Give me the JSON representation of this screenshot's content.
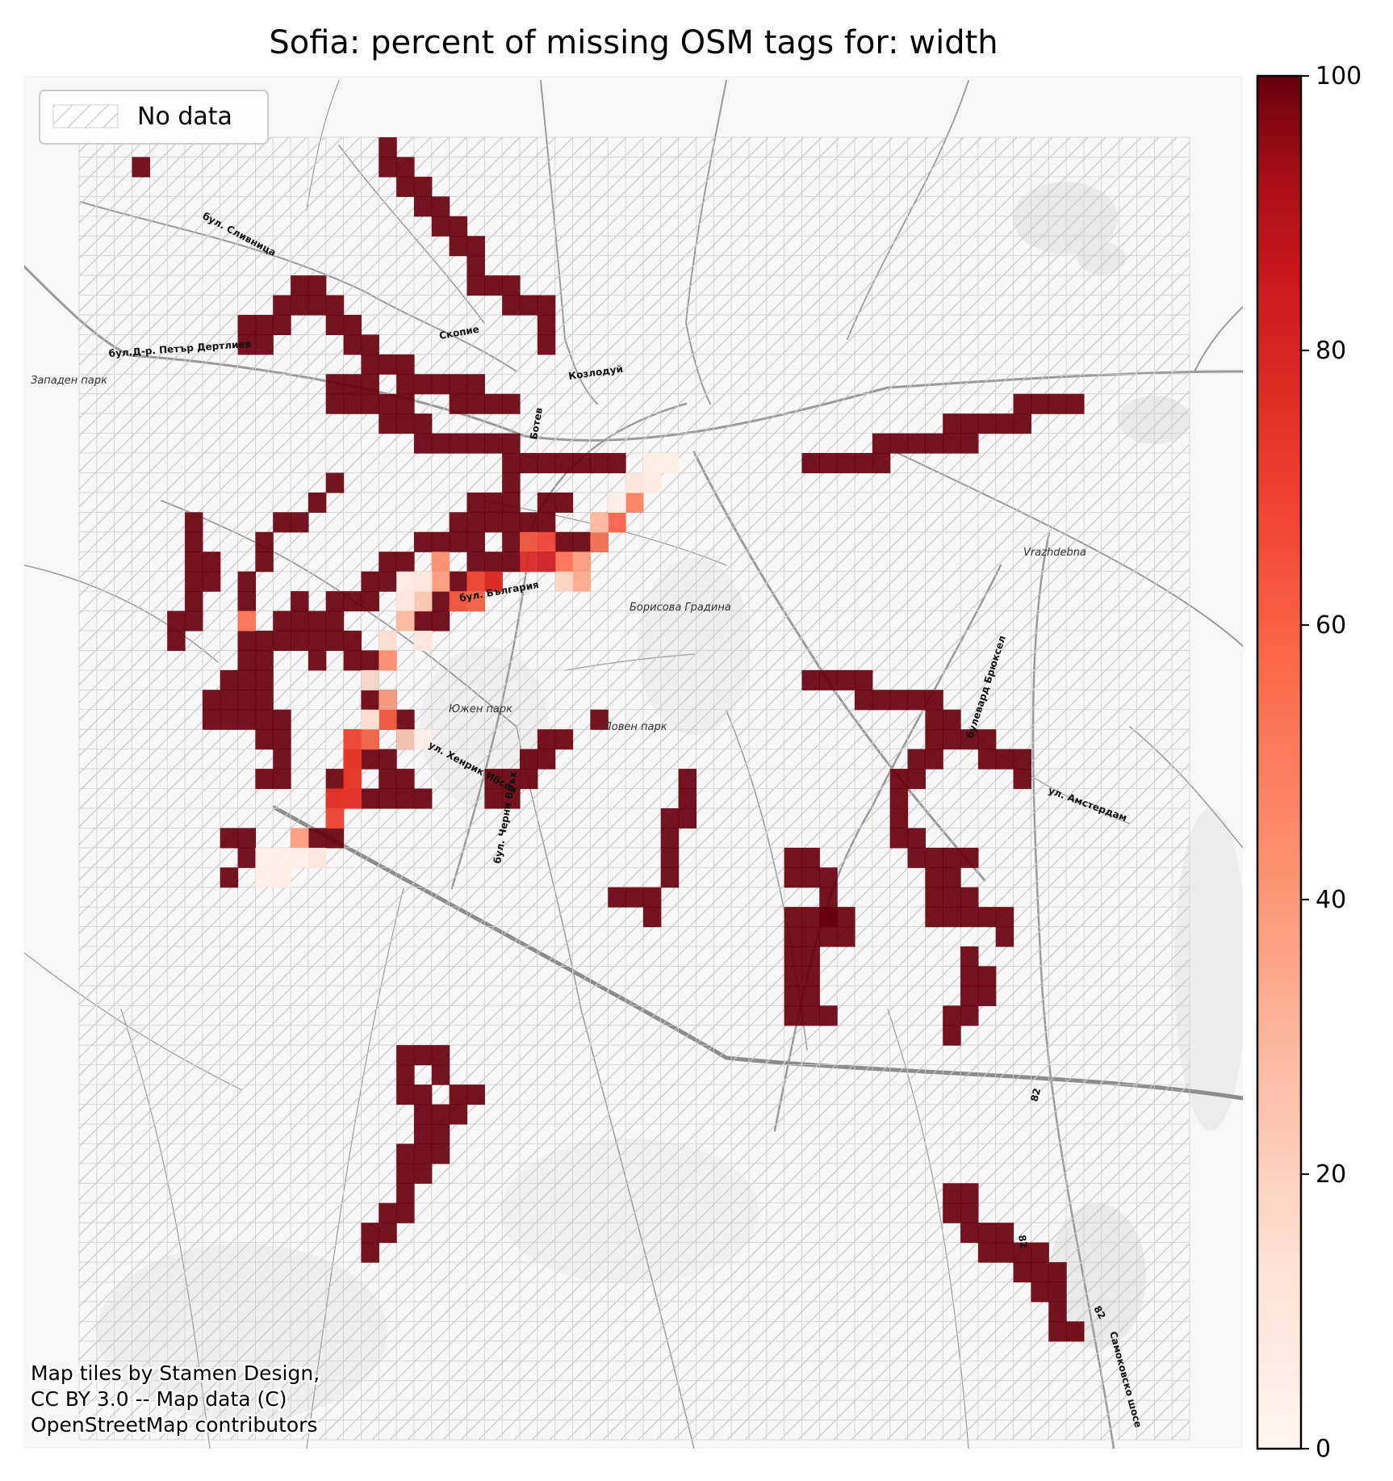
{
  "title": "Sofia: percent of missing OSM tags for: width",
  "legend": {
    "no_data_label": "No data"
  },
  "attribution": [
    "Map tiles by Stamen Design,",
    "CC BY 3.0 -- Map data (C)",
    "OpenStreetMap contributors"
  ],
  "colorbar": {
    "min": 0,
    "max": 100,
    "ticks": [
      "0",
      "20",
      "40",
      "60",
      "80",
      "100"
    ],
    "colormap": "Reds",
    "colors": [
      "#fff5f0",
      "#fcbba1",
      "#fc9272",
      "#fb6a4a",
      "#ef3b2c",
      "#cb181d",
      "#99000d",
      "#67000d"
    ]
  },
  "map_labels": {
    "zapaden": "Западен парк",
    "slivnitsa": "бул. Сливница",
    "petar": "бул.Д-р. Петър Дертлиев",
    "skopie": "Скопие",
    "kozloduy": "Козлодуй",
    "botev": "Ботев",
    "vrazhdebna": "Vrazhdebna",
    "borisova": "Борисова Градина",
    "bulgaria": "бул. България",
    "yuzhen": "Южен парк",
    "loven": "Ловен парк",
    "ibsen": "ул. Хенрик Ибсен",
    "cherni": "бул. Черни Връх",
    "brussels": "булевард Брюксел",
    "amsterdam": "ул. Амстердам",
    "samokov": "Самоковско шосе",
    "road82a": "82",
    "road82b": "82",
    "road82c": "82"
  },
  "chart_data": {
    "type": "heatmap",
    "title": "Sofia: percent of missing OSM tags for: width",
    "value_range": [
      0,
      100
    ],
    "colorbar_ticks": [
      0,
      20,
      40,
      60,
      80,
      100
    ],
    "grid": {
      "columns": 63,
      "rows": 66
    },
    "legend": [
      "No data"
    ],
    "legend_placement": "top-left",
    "note": "",
    "cells_100": [
      [
        3,
        1
      ],
      [
        17,
        0
      ],
      [
        17,
        1
      ],
      [
        18,
        1
      ],
      [
        18,
        2
      ],
      [
        19,
        2
      ],
      [
        19,
        3
      ],
      [
        20,
        3
      ],
      [
        20,
        4
      ],
      [
        21,
        4
      ],
      [
        21,
        5
      ],
      [
        22,
        5
      ],
      [
        22,
        6
      ],
      [
        22,
        7
      ],
      [
        23,
        7
      ],
      [
        24,
        7
      ],
      [
        24,
        8
      ],
      [
        25,
        8
      ],
      [
        26,
        8
      ],
      [
        26,
        9
      ],
      [
        26,
        10
      ],
      [
        12,
        7
      ],
      [
        13,
        7
      ],
      [
        11,
        8
      ],
      [
        12,
        8
      ],
      [
        13,
        8
      ],
      [
        14,
        8
      ],
      [
        9,
        9
      ],
      [
        10,
        9
      ],
      [
        11,
        9
      ],
      [
        14,
        9
      ],
      [
        15,
        9
      ],
      [
        9,
        10
      ],
      [
        10,
        10
      ],
      [
        15,
        10
      ],
      [
        16,
        10
      ],
      [
        16,
        11
      ],
      [
        17,
        11
      ],
      [
        18,
        11
      ],
      [
        18,
        12
      ],
      [
        19,
        12
      ],
      [
        20,
        12
      ],
      [
        21,
        12
      ],
      [
        22,
        12
      ],
      [
        21,
        13
      ],
      [
        22,
        13
      ],
      [
        23,
        13
      ],
      [
        24,
        13
      ],
      [
        14,
        12
      ],
      [
        15,
        12
      ],
      [
        16,
        12
      ],
      [
        14,
        13
      ],
      [
        15,
        13
      ],
      [
        16,
        13
      ],
      [
        17,
        13
      ],
      [
        18,
        13
      ],
      [
        17,
        14
      ],
      [
        18,
        14
      ],
      [
        19,
        14
      ],
      [
        19,
        15
      ],
      [
        20,
        15
      ],
      [
        21,
        15
      ],
      [
        22,
        15
      ],
      [
        23,
        15
      ],
      [
        24,
        15
      ],
      [
        24,
        16
      ],
      [
        25,
        16
      ],
      [
        26,
        16
      ],
      [
        27,
        16
      ],
      [
        28,
        16
      ],
      [
        29,
        16
      ],
      [
        30,
        16
      ],
      [
        24,
        17
      ],
      [
        24,
        18
      ],
      [
        23,
        18
      ],
      [
        22,
        18
      ],
      [
        24,
        19
      ],
      [
        23,
        19
      ],
      [
        21,
        19
      ],
      [
        22,
        19
      ],
      [
        20,
        20
      ],
      [
        21,
        20
      ],
      [
        22,
        20
      ],
      [
        19,
        20
      ],
      [
        18,
        21
      ],
      [
        22,
        21
      ],
      [
        23,
        21
      ],
      [
        24,
        21
      ],
      [
        17,
        21
      ],
      [
        16,
        22
      ],
      [
        17,
        22
      ],
      [
        23,
        22
      ],
      [
        22,
        22
      ],
      [
        21,
        22
      ],
      [
        15,
        23
      ],
      [
        16,
        23
      ],
      [
        14,
        23
      ],
      [
        21,
        23
      ],
      [
        22,
        23
      ],
      [
        20,
        23
      ],
      [
        19,
        24
      ],
      [
        20,
        24
      ],
      [
        14,
        24
      ],
      [
        13,
        24
      ],
      [
        26,
        18
      ],
      [
        27,
        18
      ],
      [
        25,
        19
      ],
      [
        26,
        19
      ],
      [
        24,
        20
      ],
      [
        25,
        20
      ],
      [
        27,
        20
      ],
      [
        28,
        20
      ],
      [
        29,
        20
      ],
      [
        14,
        17
      ],
      [
        13,
        18
      ],
      [
        12,
        19
      ],
      [
        11,
        19
      ],
      [
        10,
        20
      ],
      [
        10,
        21
      ],
      [
        9,
        22
      ],
      [
        9,
        23
      ],
      [
        6,
        19
      ],
      [
        6,
        20
      ],
      [
        6,
        21
      ],
      [
        7,
        21
      ],
      [
        6,
        22
      ],
      [
        7,
        22
      ],
      [
        6,
        23
      ],
      [
        5,
        24
      ],
      [
        6,
        24
      ],
      [
        5,
        25
      ],
      [
        12,
        23
      ],
      [
        12,
        24
      ],
      [
        11,
        24
      ],
      [
        11,
        25
      ],
      [
        10,
        25
      ],
      [
        12,
        25
      ],
      [
        13,
        25
      ],
      [
        14,
        25
      ],
      [
        13,
        26
      ],
      [
        15,
        25
      ],
      [
        15,
        26
      ],
      [
        16,
        26
      ],
      [
        16,
        27
      ],
      [
        9,
        25
      ],
      [
        10,
        26
      ],
      [
        9,
        26
      ],
      [
        10,
        27
      ],
      [
        9,
        27
      ],
      [
        8,
        27
      ],
      [
        8,
        28
      ],
      [
        9,
        28
      ],
      [
        7,
        28
      ],
      [
        7,
        29
      ],
      [
        8,
        29
      ],
      [
        9,
        29
      ],
      [
        10,
        28
      ],
      [
        10,
        29
      ],
      [
        10,
        30
      ],
      [
        11,
        29
      ],
      [
        11,
        30
      ],
      [
        16,
        28
      ],
      [
        17,
        28
      ],
      [
        17,
        29
      ],
      [
        18,
        29
      ],
      [
        18,
        30
      ],
      [
        15,
        30
      ],
      [
        16,
        30
      ],
      [
        16,
        31
      ],
      [
        17,
        31
      ],
      [
        17,
        32
      ],
      [
        18,
        32
      ],
      [
        11,
        31
      ],
      [
        11,
        32
      ],
      [
        10,
        32
      ],
      [
        15,
        31
      ],
      [
        15,
        32
      ],
      [
        14,
        32
      ],
      [
        14,
        33
      ],
      [
        15,
        33
      ],
      [
        16,
        33
      ],
      [
        17,
        33
      ],
      [
        18,
        33
      ],
      [
        19,
        33
      ],
      [
        14,
        34
      ],
      [
        14,
        35
      ],
      [
        13,
        35
      ],
      [
        8,
        35
      ],
      [
        9,
        35
      ],
      [
        9,
        36
      ],
      [
        8,
        37
      ],
      [
        29,
        29
      ],
      [
        27,
        30
      ],
      [
        26,
        30
      ],
      [
        26,
        31
      ],
      [
        25,
        31
      ],
      [
        24,
        32
      ],
      [
        25,
        32
      ],
      [
        23,
        32
      ],
      [
        24,
        33
      ],
      [
        23,
        33
      ],
      [
        34,
        32
      ],
      [
        34,
        33
      ],
      [
        33,
        34
      ],
      [
        34,
        34
      ],
      [
        33,
        35
      ],
      [
        33,
        36
      ],
      [
        33,
        37
      ],
      [
        32,
        38
      ],
      [
        31,
        38
      ],
      [
        30,
        38
      ],
      [
        32,
        39
      ],
      [
        41,
        27
      ],
      [
        42,
        27
      ],
      [
        43,
        27
      ],
      [
        44,
        27
      ],
      [
        44,
        28
      ],
      [
        45,
        28
      ],
      [
        46,
        28
      ],
      [
        47,
        28
      ],
      [
        48,
        28
      ],
      [
        48,
        29
      ],
      [
        49,
        29
      ],
      [
        48,
        30
      ],
      [
        49,
        30
      ],
      [
        50,
        30
      ],
      [
        51,
        30
      ],
      [
        51,
        31
      ],
      [
        52,
        31
      ],
      [
        53,
        31
      ],
      [
        53,
        32
      ],
      [
        48,
        31
      ],
      [
        47,
        31
      ],
      [
        47,
        32
      ],
      [
        46,
        32
      ],
      [
        46,
        33
      ],
      [
        46,
        34
      ],
      [
        46,
        35
      ],
      [
        47,
        35
      ],
      [
        47,
        36
      ],
      [
        48,
        36
      ],
      [
        49,
        36
      ],
      [
        50,
        36
      ],
      [
        48,
        37
      ],
      [
        49,
        37
      ],
      [
        48,
        38
      ],
      [
        49,
        38
      ],
      [
        50,
        38
      ],
      [
        48,
        39
      ],
      [
        49,
        39
      ],
      [
        50,
        39
      ],
      [
        51,
        39
      ],
      [
        52,
        39
      ],
      [
        52,
        40
      ],
      [
        40,
        36
      ],
      [
        41,
        36
      ],
      [
        40,
        37
      ],
      [
        41,
        37
      ],
      [
        42,
        37
      ],
      [
        42,
        38
      ],
      [
        42,
        39
      ],
      [
        43,
        39
      ],
      [
        43,
        40
      ],
      [
        41,
        39
      ],
      [
        41,
        40
      ],
      [
        41,
        41
      ],
      [
        41,
        42
      ],
      [
        41,
        43
      ],
      [
        40,
        39
      ],
      [
        40,
        40
      ],
      [
        40,
        41
      ],
      [
        40,
        42
      ],
      [
        40,
        43
      ],
      [
        40,
        44
      ],
      [
        41,
        44
      ],
      [
        42,
        44
      ],
      [
        42,
        39
      ],
      [
        42,
        40
      ],
      [
        50,
        41
      ],
      [
        50,
        42
      ],
      [
        51,
        42
      ],
      [
        51,
        43
      ],
      [
        50,
        43
      ],
      [
        50,
        44
      ],
      [
        49,
        44
      ],
      [
        49,
        45
      ],
      [
        41,
        16
      ],
      [
        42,
        16
      ],
      [
        43,
        16
      ],
      [
        44,
        16
      ],
      [
        45,
        16
      ],
      [
        45,
        15
      ],
      [
        46,
        15
      ],
      [
        47,
        15
      ],
      [
        48,
        15
      ],
      [
        49,
        15
      ],
      [
        50,
        15
      ],
      [
        49,
        14
      ],
      [
        50,
        14
      ],
      [
        51,
        14
      ],
      [
        52,
        14
      ],
      [
        53,
        14
      ],
      [
        53,
        13
      ],
      [
        54,
        13
      ],
      [
        55,
        13
      ],
      [
        56,
        13
      ],
      [
        18,
        46
      ],
      [
        19,
        46
      ],
      [
        20,
        46
      ],
      [
        18,
        47
      ],
      [
        20,
        47
      ],
      [
        18,
        48
      ],
      [
        21,
        48
      ],
      [
        22,
        48
      ],
      [
        19,
        48
      ],
      [
        19,
        49
      ],
      [
        20,
        49
      ],
      [
        21,
        49
      ],
      [
        19,
        50
      ],
      [
        20,
        50
      ],
      [
        18,
        51
      ],
      [
        19,
        51
      ],
      [
        20,
        51
      ],
      [
        18,
        52
      ],
      [
        19,
        52
      ],
      [
        18,
        53
      ],
      [
        17,
        54
      ],
      [
        18,
        54
      ],
      [
        16,
        55
      ],
      [
        17,
        55
      ],
      [
        16,
        56
      ],
      [
        49,
        53
      ],
      [
        50,
        53
      ],
      [
        49,
        54
      ],
      [
        50,
        54
      ],
      [
        50,
        55
      ],
      [
        51,
        55
      ],
      [
        52,
        55
      ],
      [
        51,
        56
      ],
      [
        52,
        56
      ],
      [
        53,
        56
      ],
      [
        54,
        56
      ],
      [
        53,
        57
      ],
      [
        54,
        57
      ],
      [
        55,
        57
      ],
      [
        55,
        58
      ],
      [
        54,
        58
      ],
      [
        55,
        59
      ],
      [
        55,
        60
      ],
      [
        56,
        60
      ]
    ],
    "cells_partial": [
      [
        25,
        20,
        60
      ],
      [
        26,
        20,
        70
      ],
      [
        29,
        20,
        50
      ],
      [
        27,
        21,
        55
      ],
      [
        28,
        21,
        40
      ],
      [
        30,
        19,
        60
      ],
      [
        31,
        18,
        50
      ],
      [
        28,
        22,
        35
      ],
      [
        27,
        22,
        20
      ],
      [
        22,
        22,
        65
      ],
      [
        23,
        22,
        75
      ],
      [
        20,
        21,
        45
      ],
      [
        20,
        22,
        40
      ],
      [
        19,
        23,
        25
      ],
      [
        18,
        23,
        10
      ],
      [
        18,
        24,
        30
      ],
      [
        17,
        25,
        15
      ],
      [
        19,
        25,
        10
      ],
      [
        17,
        26,
        45
      ],
      [
        16,
        27,
        10
      ],
      [
        19,
        22,
        10
      ],
      [
        18,
        22,
        8
      ],
      [
        25,
        21,
        80
      ],
      [
        26,
        21,
        85
      ],
      [
        22,
        23,
        55
      ],
      [
        21,
        23,
        60
      ],
      [
        9,
        24,
        55
      ],
      [
        17,
        28,
        35
      ],
      [
        17,
        29,
        60
      ],
      [
        16,
        29,
        15
      ],
      [
        16,
        30,
        55
      ],
      [
        15,
        30,
        65
      ],
      [
        15,
        31,
        72
      ],
      [
        15,
        32,
        70
      ],
      [
        15,
        33,
        72
      ],
      [
        14,
        33,
        73
      ],
      [
        14,
        34,
        65
      ],
      [
        12,
        35,
        40
      ],
      [
        11,
        36,
        5
      ],
      [
        12,
        36,
        5
      ],
      [
        13,
        36,
        10
      ],
      [
        10,
        36,
        5
      ],
      [
        10,
        37,
        5
      ],
      [
        11,
        37,
        5
      ],
      [
        18,
        30,
        20
      ],
      [
        19,
        30,
        5
      ],
      [
        31,
        17,
        10
      ],
      [
        32,
        17,
        8
      ],
      [
        32,
        16,
        5
      ],
      [
        33,
        16,
        5
      ],
      [
        30,
        18,
        5
      ],
      [
        29,
        19,
        30
      ]
    ]
  }
}
